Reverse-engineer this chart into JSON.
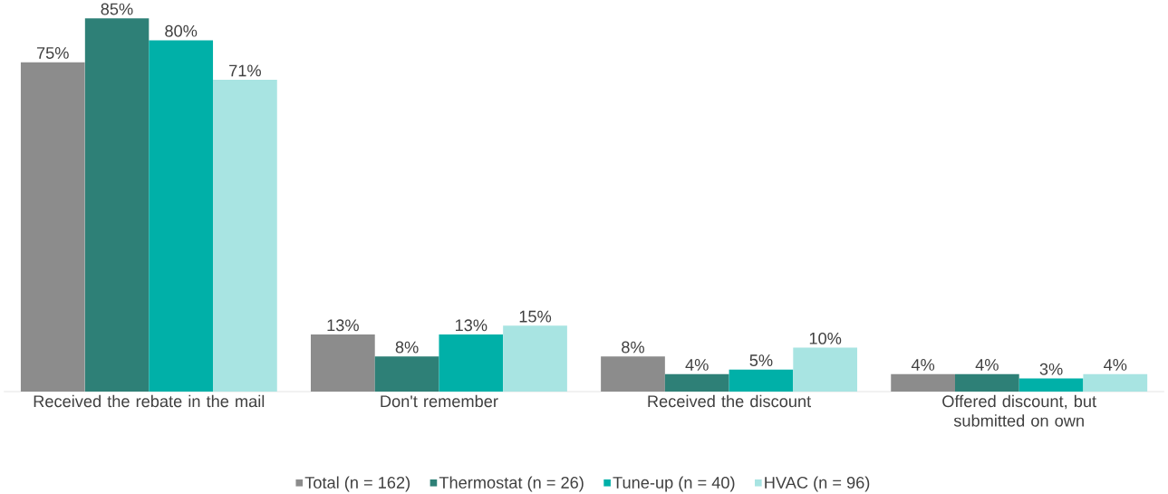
{
  "chart_data": {
    "type": "bar",
    "categories": [
      "Received the rebate in the mail",
      "Don't remember",
      "Received the discount",
      "Offered discount, but submitted on own"
    ],
    "series": [
      {
        "name": "Total (n = 162)",
        "color": "#8c8c8c",
        "values": [
          75,
          13,
          8,
          4
        ],
        "value_labels": [
          "75%",
          "13%",
          "8%",
          "4%"
        ]
      },
      {
        "name": "Thermostat (n = 26)",
        "color": "#2e8077",
        "values": [
          85,
          8,
          4,
          4
        ],
        "value_labels": [
          "85%",
          "8%",
          "4%",
          "4%"
        ]
      },
      {
        "name": "Tune-up (n = 40)",
        "color": "#00b0a8",
        "values": [
          80,
          13,
          5,
          3
        ],
        "value_labels": [
          "80%",
          "13%",
          "5%",
          "3%"
        ]
      },
      {
        "name": "HVAC (n = 96)",
        "color": "#a8e4e2",
        "values": [
          71,
          15,
          10,
          4
        ],
        "value_labels": [
          "71%",
          "15%",
          "10%",
          "4%"
        ]
      }
    ],
    "legend": "bottom"
  }
}
